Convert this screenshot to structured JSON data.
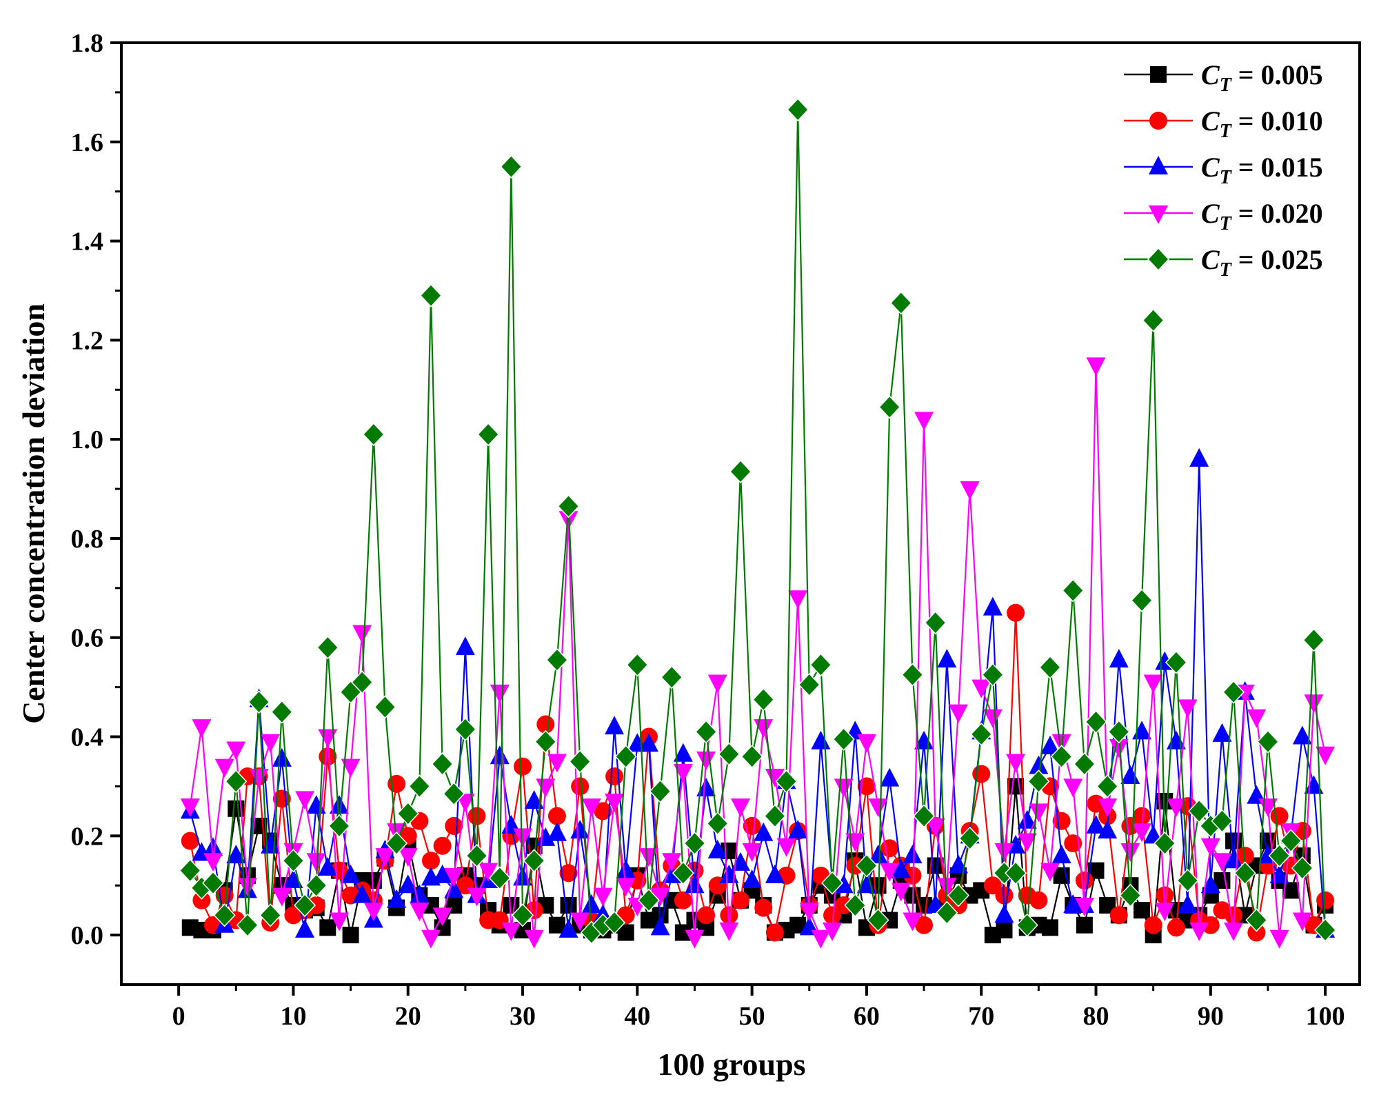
{
  "chart_data": {
    "type": "line",
    "title": "",
    "xlabel": "100 groups",
    "ylabel": "Center concentration deviation",
    "xlim": [
      -5,
      103
    ],
    "ylim": [
      -0.1,
      1.8
    ],
    "xticks": [
      0,
      10,
      20,
      30,
      40,
      50,
      60,
      70,
      80,
      90,
      100
    ],
    "yticks": [
      0.0,
      0.2,
      0.4,
      0.6,
      0.8,
      1.0,
      1.2,
      1.4,
      1.6,
      1.8
    ],
    "xtick_labels": [
      "0",
      "10",
      "20",
      "30",
      "40",
      "50",
      "60",
      "70",
      "80",
      "90",
      "100"
    ],
    "ytick_labels": [
      "0.0",
      "0.2",
      "0.4",
      "0.6",
      "0.8",
      "1.0",
      "1.2",
      "1.4",
      "1.6",
      "1.8"
    ],
    "legend_position": "top-right",
    "series": [
      {
        "name": "C_T = 0.005",
        "legend_var": "C",
        "legend_sub": "T",
        "legend_value": "= 0.005",
        "color": "#000000",
        "marker": "square",
        "values": [
          0.015,
          0.01,
          0.01,
          0.09,
          0.255,
          0.12,
          0.22,
          0.19,
          0.1,
          0.06,
          0.05,
          0.055,
          0.015,
          0.13,
          0.0,
          0.11,
          0.11,
          0.155,
          0.055,
          0.19,
          0.08,
          0.06,
          0.015,
          0.06,
          0.12,
          0.1,
          0.05,
          0.02,
          0.06,
          0.01,
          0.18,
          0.06,
          0.02,
          0.06,
          0.02,
          0.01,
          0.01,
          0.02,
          0.005,
          0.12,
          0.03,
          0.04,
          0.07,
          0.005,
          0.03,
          0.015,
          0.08,
          0.17,
          0.07,
          0.09,
          0.06,
          0.005,
          0.01,
          0.02,
          0.06,
          0.1,
          0.08,
          0.04,
          0.15,
          0.015,
          0.1,
          0.03,
          0.11,
          0.08,
          0.06,
          0.14,
          0.06,
          0.12,
          0.08,
          0.09,
          0.0,
          0.01,
          0.3,
          0.015,
          0.02,
          0.015,
          0.12,
          0.06,
          0.02,
          0.13,
          0.06,
          0.04,
          0.1,
          0.05,
          0.0,
          0.27,
          0.05,
          0.03,
          0.04,
          0.08,
          0.11,
          0.19,
          0.04,
          0.14,
          0.19,
          0.11,
          0.09,
          0.16,
          0.02,
          0.06
        ]
      },
      {
        "name": "C_T = 0.010",
        "legend_var": "C",
        "legend_sub": "T",
        "legend_value": "= 0.010",
        "color": "#ff0000",
        "marker": "circle",
        "values": [
          0.19,
          0.07,
          0.02,
          0.08,
          0.03,
          0.32,
          0.32,
          0.025,
          0.275,
          0.04,
          0.05,
          0.06,
          0.36,
          0.13,
          0.08,
          0.09,
          0.07,
          0.15,
          0.305,
          0.2,
          0.23,
          0.15,
          0.18,
          0.22,
          0.1,
          0.24,
          0.03,
          0.03,
          0.2,
          0.34,
          0.05,
          0.425,
          0.24,
          0.125,
          0.3,
          0.03,
          0.25,
          0.32,
          0.04,
          0.11,
          0.4,
          0.09,
          0.14,
          0.07,
          0.13,
          0.04,
          0.1,
          0.04,
          0.07,
          0.22,
          0.055,
          0.005,
          0.12,
          0.21,
          0.06,
          0.12,
          0.04,
          0.06,
          0.14,
          0.3,
          0.02,
          0.175,
          0.14,
          0.12,
          0.02,
          0.22,
          0.08,
          0.06,
          0.21,
          0.325,
          0.1,
          0.08,
          0.65,
          0.08,
          0.07,
          0.3,
          0.23,
          0.185,
          0.11,
          0.265,
          0.24,
          0.04,
          0.22,
          0.24,
          0.02,
          0.08,
          0.015,
          0.26,
          0.03,
          0.02,
          0.05,
          0.04,
          0.16,
          0.005,
          0.14,
          0.24,
          0.14,
          0.21,
          0.02,
          0.07
        ]
      },
      {
        "name": "C_T = 0.015",
        "legend_var": "C",
        "legend_sub": "T",
        "legend_value": "= 0.015",
        "color": "#0000ff",
        "marker": "triangle-up",
        "values": [
          0.25,
          0.165,
          0.175,
          0.02,
          0.16,
          0.09,
          0.475,
          0.18,
          0.355,
          0.11,
          0.01,
          0.26,
          0.135,
          0.26,
          0.12,
          0.08,
          0.03,
          0.17,
          0.07,
          0.1,
          0.08,
          0.115,
          0.12,
          0.09,
          0.58,
          0.08,
          0.11,
          0.36,
          0.22,
          0.115,
          0.27,
          0.195,
          0.205,
          0.01,
          0.21,
          0.06,
          0.04,
          0.42,
          0.13,
          0.385,
          0.385,
          0.015,
          0.12,
          0.365,
          0.1,
          0.295,
          0.17,
          0.12,
          0.145,
          0.11,
          0.205,
          0.12,
          0.31,
          0.21,
          0.015,
          0.39,
          0.11,
          0.1,
          0.41,
          0.1,
          0.16,
          0.315,
          0.13,
          0.16,
          0.39,
          0.06,
          0.555,
          0.14,
          0.2,
          0.41,
          0.66,
          0.04,
          0.18,
          0.23,
          0.34,
          0.38,
          0.16,
          0.06,
          0.06,
          0.22,
          0.21,
          0.555,
          0.32,
          0.41,
          0.2,
          0.55,
          0.39,
          0.06,
          0.96,
          0.1,
          0.405,
          0.15,
          0.49,
          0.28,
          0.16,
          0.12,
          0.2,
          0.4,
          0.3,
          0.01
        ]
      },
      {
        "name": "C_T = 0.020",
        "legend_var": "C",
        "legend_sub": "T",
        "legend_value": "= 0.020",
        "color": "#ff00ff",
        "marker": "triangle-down",
        "values": [
          0.26,
          0.42,
          0.15,
          0.34,
          0.375,
          0.1,
          0.32,
          0.39,
          0.08,
          0.17,
          0.275,
          0.15,
          0.4,
          0.03,
          0.34,
          0.61,
          0.05,
          0.16,
          0.21,
          0.16,
          0.05,
          -0.005,
          0.04,
          0.12,
          0.27,
          0.08,
          0.13,
          0.49,
          0.01,
          0.2,
          -0.005,
          0.3,
          0.35,
          0.84,
          0.03,
          0.26,
          0.08,
          0.27,
          0.1,
          0.06,
          0.16,
          0.08,
          0.15,
          0.33,
          -0.005,
          0.355,
          0.51,
          0.01,
          0.26,
          0.17,
          0.42,
          0.32,
          0.18,
          0.68,
          0.05,
          -0.005,
          0.01,
          0.3,
          0.19,
          0.39,
          0.26,
          0.13,
          0.09,
          0.03,
          1.04,
          0.22,
          0.1,
          0.45,
          0.9,
          0.5,
          0.44,
          0.17,
          0.35,
          0.19,
          0.25,
          0.13,
          0.39,
          0.3,
          0.06,
          1.15,
          0.26,
          0.38,
          0.17,
          0.21,
          0.51,
          0.05,
          0.26,
          0.46,
          0.01,
          0.18,
          0.15,
          0.01,
          0.49,
          0.44,
          0.26,
          -0.005,
          0.21,
          0.03,
          0.47,
          0.365
        ]
      },
      {
        "name": "C_T = 0.025",
        "legend_var": "C",
        "legend_sub": "T",
        "legend_value": "= 0.025",
        "color": "#007a00",
        "marker": "diamond",
        "values": [
          0.13,
          0.095,
          0.105,
          0.04,
          0.31,
          0.02,
          0.47,
          0.04,
          0.45,
          0.15,
          0.06,
          0.1,
          0.58,
          0.22,
          0.49,
          0.51,
          1.01,
          0.46,
          0.185,
          0.245,
          0.3,
          1.29,
          0.345,
          0.285,
          0.415,
          0.16,
          1.01,
          0.115,
          1.55,
          0.04,
          0.15,
          0.39,
          0.555,
          0.865,
          0.35,
          0.005,
          0.02,
          0.025,
          0.36,
          0.545,
          0.07,
          0.29,
          0.52,
          0.125,
          0.185,
          0.41,
          0.225,
          0.365,
          0.935,
          0.36,
          0.475,
          0.24,
          0.31,
          1.665,
          0.505,
          0.545,
          0.105,
          0.395,
          0.06,
          0.14,
          0.03,
          1.065,
          1.275,
          0.525,
          0.24,
          0.63,
          0.045,
          0.08,
          0.195,
          0.405,
          0.525,
          0.125,
          0.125,
          0.02,
          0.31,
          0.54,
          0.36,
          0.695,
          0.345,
          0.43,
          0.3,
          0.41,
          0.08,
          0.675,
          1.24,
          0.185,
          0.55,
          0.11,
          0.25,
          0.22,
          0.23,
          0.49,
          0.125,
          0.03,
          0.39,
          0.16,
          0.19,
          0.135,
          0.595,
          0.01
        ]
      }
    ]
  }
}
